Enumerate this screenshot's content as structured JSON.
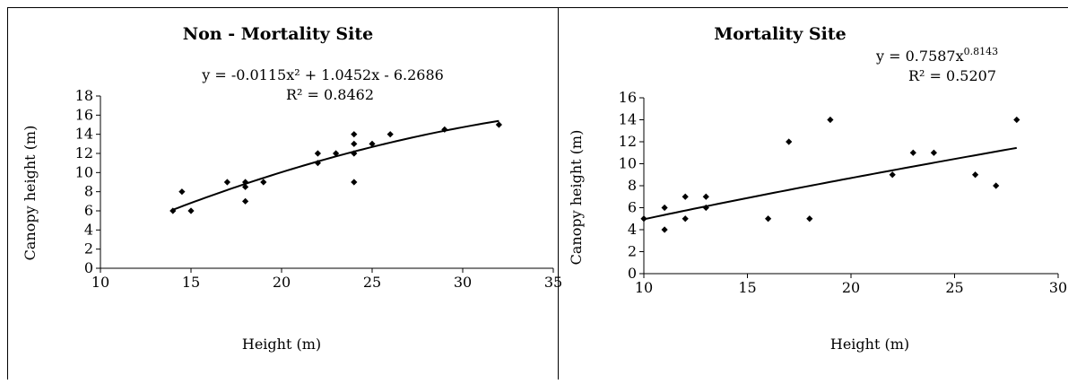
{
  "chart_data": [
    {
      "type": "scatter",
      "title": "Non - Mortality Site",
      "xlabel": "Height (m)",
      "ylabel": "Canopy height (m)",
      "xlim": [
        10,
        35
      ],
      "ylim": [
        0,
        18
      ],
      "xticks": [
        "10",
        "15",
        "20",
        "25",
        "30",
        "35"
      ],
      "yticks": [
        "0",
        "2",
        "4",
        "6",
        "8",
        "10",
        "12",
        "14",
        "16",
        "18"
      ],
      "equation": "y = -0.0115x² + 1.0452x - 6.2686",
      "r2": "R² = 0.8462",
      "trendline": {
        "kind": "polynomial",
        "coefficients": [
          -0.0115,
          1.0452,
          -6.2686
        ],
        "x_range": [
          14,
          32
        ]
      },
      "points": [
        [
          14,
          6
        ],
        [
          14.5,
          8
        ],
        [
          15,
          6
        ],
        [
          17,
          9
        ],
        [
          18,
          9
        ],
        [
          18,
          8.5
        ],
        [
          18,
          7
        ],
        [
          19,
          9
        ],
        [
          22,
          12
        ],
        [
          22,
          11
        ],
        [
          23,
          12
        ],
        [
          24,
          14
        ],
        [
          24,
          13
        ],
        [
          24,
          12
        ],
        [
          24,
          9
        ],
        [
          25,
          13
        ],
        [
          26,
          14
        ],
        [
          29,
          14.5
        ],
        [
          32,
          15
        ]
      ]
    },
    {
      "type": "scatter",
      "title": "Mortality Site",
      "xlabel": "Height (m)",
      "ylabel": "Canopy height (m)",
      "xlim": [
        10,
        30
      ],
      "ylim": [
        0,
        16
      ],
      "xticks": [
        "10",
        "15",
        "20",
        "25",
        "30"
      ],
      "yticks": [
        "0",
        "2",
        "4",
        "6",
        "8",
        "10",
        "12",
        "14",
        "16"
      ],
      "equation_base": "y = 0.7587x",
      "equation_exponent": "0.8143",
      "r2": "R² = 0.5207",
      "trendline": {
        "kind": "power",
        "a": 0.7587,
        "b": 0.8143,
        "x_range": [
          10,
          28
        ]
      },
      "points": [
        [
          10,
          5
        ],
        [
          11,
          6
        ],
        [
          11,
          4
        ],
        [
          12,
          7
        ],
        [
          12,
          5
        ],
        [
          13,
          7
        ],
        [
          13,
          6
        ],
        [
          16,
          5
        ],
        [
          17,
          12
        ],
        [
          18,
          5
        ],
        [
          19,
          14
        ],
        [
          22,
          9
        ],
        [
          23,
          11
        ],
        [
          24,
          11
        ],
        [
          26,
          9
        ],
        [
          27,
          8
        ],
        [
          28,
          14
        ]
      ]
    }
  ]
}
